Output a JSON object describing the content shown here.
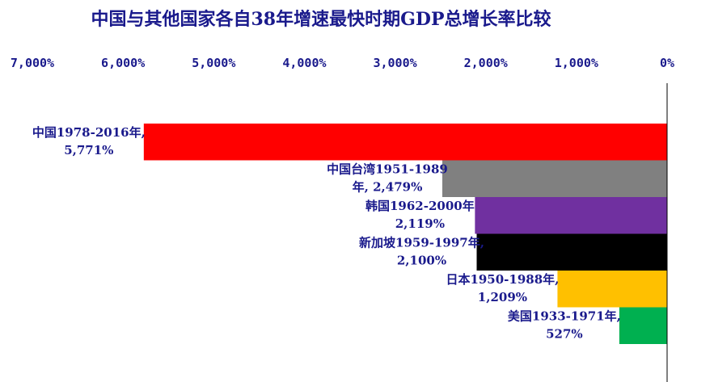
{
  "chart_data": {
    "type": "bar",
    "orientation": "horizontal",
    "x_direction": "reversed",
    "title": "中国与其他国家各自38年增速最快时期GDP总增长率比较",
    "xlim": [
      0,
      7000
    ],
    "ticks": [
      {
        "value": 7000,
        "label": "7,000%"
      },
      {
        "value": 6000,
        "label": "6,000%"
      },
      {
        "value": 5000,
        "label": "5,000%"
      },
      {
        "value": 4000,
        "label": "4,000%"
      },
      {
        "value": 3000,
        "label": "3,000%"
      },
      {
        "value": 2000,
        "label": "2,000%"
      },
      {
        "value": 1000,
        "label": "1,000%"
      },
      {
        "value": 0,
        "label": "0%"
      }
    ],
    "bars": [
      {
        "label_line1": "中国1978-2016年,",
        "label_line2": "5,771%",
        "value": 5771,
        "color": "#ff0000"
      },
      {
        "label_line1": "中国台湾1951-1989",
        "label_line2": "年, 2,479%",
        "value": 2479,
        "color": "#808080"
      },
      {
        "label_line1": "韩国1962-2000年",
        "label_line2": "2,119%",
        "value": 2119,
        "color": "#7030a0"
      },
      {
        "label_line1": "新加坡1959-1997年,",
        "label_line2": "2,100%",
        "value": 2100,
        "color": "#000000"
      },
      {
        "label_line1": "日本1950-1988年,",
        "label_line2": "1,209%",
        "value": 1209,
        "color": "#ffc000"
      },
      {
        "label_line1": "美国1933-1971年,",
        "label_line2": "527%",
        "value": 527,
        "color": "#00b050"
      }
    ]
  }
}
